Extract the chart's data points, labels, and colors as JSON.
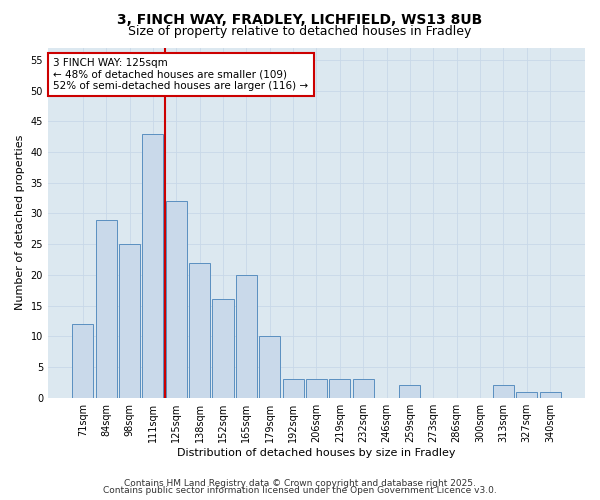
{
  "title1": "3, FINCH WAY, FRADLEY, LICHFIELD, WS13 8UB",
  "title2": "Size of property relative to detached houses in Fradley",
  "xlabel": "Distribution of detached houses by size in Fradley",
  "ylabel": "Number of detached properties",
  "categories": [
    "71sqm",
    "84sqm",
    "98sqm",
    "111sqm",
    "125sqm",
    "138sqm",
    "152sqm",
    "165sqm",
    "179sqm",
    "192sqm",
    "206sqm",
    "219sqm",
    "232sqm",
    "246sqm",
    "259sqm",
    "273sqm",
    "286sqm",
    "300sqm",
    "313sqm",
    "327sqm",
    "340sqm"
  ],
  "values": [
    12,
    29,
    25,
    43,
    32,
    22,
    16,
    20,
    10,
    3,
    3,
    3,
    3,
    0,
    2,
    0,
    0,
    0,
    2,
    1,
    1
  ],
  "bar_color": "#c9d9ea",
  "bar_edge_color": "#5a8fc0",
  "reference_line_label": "3 FINCH WAY: 125sqm",
  "annotation_line1": "← 48% of detached houses are smaller (109)",
  "annotation_line2": "52% of semi-detached houses are larger (116) →",
  "annotation_box_color": "#ffffff",
  "annotation_box_edge": "#cc0000",
  "vline_color": "#cc0000",
  "vline_index": 3,
  "ylim": [
    0,
    57
  ],
  "yticks": [
    0,
    5,
    10,
    15,
    20,
    25,
    30,
    35,
    40,
    45,
    50,
    55
  ],
  "grid_color": "#c8d8e8",
  "bg_color": "#dce8f0",
  "footer1": "Contains HM Land Registry data © Crown copyright and database right 2025.",
  "footer2": "Contains public sector information licensed under the Open Government Licence v3.0.",
  "title_fontsize": 10,
  "subtitle_fontsize": 9,
  "axis_label_fontsize": 8,
  "tick_fontsize": 7,
  "annot_fontsize": 7.5,
  "footer_fontsize": 6.5
}
